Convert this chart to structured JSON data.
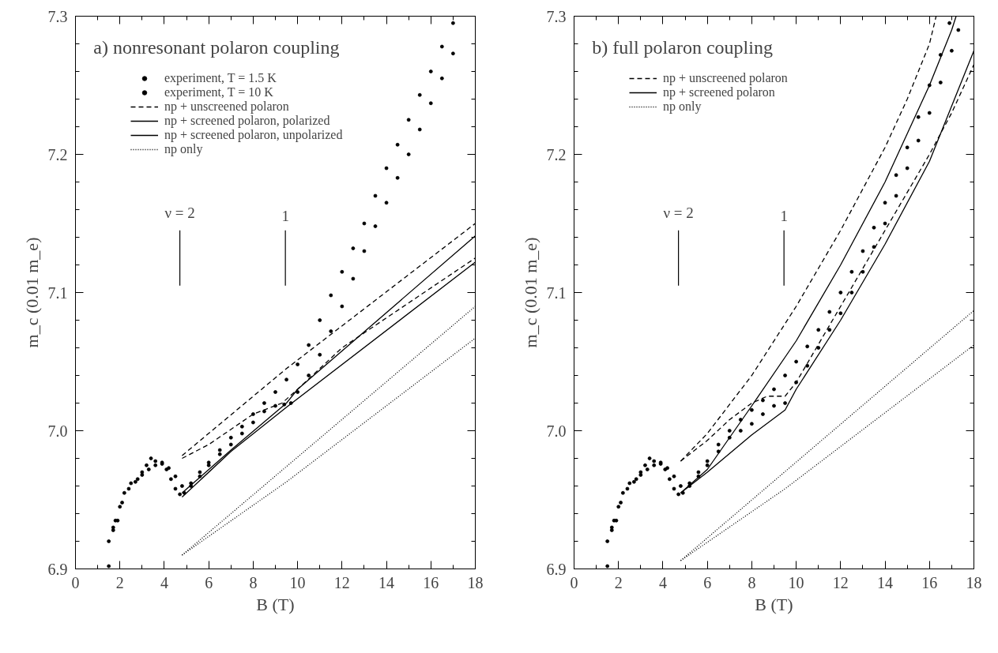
{
  "chart_data": [
    {
      "type": "line",
      "title": "a)  nonresonant polaron coupling",
      "xlabel": "B (T)",
      "ylabel": "m_c (0.01 m_e)",
      "xlim": [
        0,
        18
      ],
      "xticks": [
        0,
        2,
        4,
        6,
        8,
        10,
        12,
        14,
        16,
        18
      ],
      "ylim": [
        6.9,
        7.3
      ],
      "yticks": [
        {
          "value": 6.9,
          "label": "6.9"
        },
        {
          "value": 7.0,
          "label": "7.0"
        },
        {
          "value": 7.1,
          "label": "7.1"
        },
        {
          "value": 7.2,
          "label": "7.2"
        },
        {
          "value": 7.3,
          "label": "7.3"
        }
      ],
      "legend": "top left",
      "ref_lines": [
        {
          "axis": "x",
          "value": 4.7
        },
        {
          "axis": "x",
          "value": 9.45
        }
      ],
      "annotations": [
        "ν = 2",
        "1"
      ],
      "series": [
        {
          "name": "experiment, T = 1.5 K",
          "type": "scatter",
          "marker": "circle",
          "color": "#000000",
          "x": [
            1.5,
            1.7,
            1.8,
            2.0,
            2.2,
            2.5,
            2.8,
            3.0,
            3.2,
            3.4,
            3.6,
            3.9,
            4.1,
            4.3,
            4.5,
            4.7,
            4.9,
            5.2,
            5.6,
            6.0,
            6.5,
            7.0,
            7.5,
            8.0,
            8.5,
            9.0,
            9.4,
            9.7,
            10.0,
            10.5,
            11.0,
            11.5,
            12.0,
            12.5,
            13.0,
            13.5,
            14.0,
            14.5,
            15.0,
            15.5,
            16.0,
            16.5,
            17.0
          ],
          "values": [
            6.902,
            6.93,
            6.935,
            6.945,
            6.955,
            6.962,
            6.965,
            6.97,
            6.975,
            6.98,
            6.978,
            6.976,
            6.972,
            6.965,
            6.958,
            6.954,
            6.955,
            6.96,
            6.967,
            6.975,
            6.983,
            6.99,
            6.998,
            7.006,
            7.014,
            7.018,
            7.019,
            7.02,
            7.028,
            7.04,
            7.055,
            7.072,
            7.09,
            7.11,
            7.13,
            7.148,
            7.165,
            7.183,
            7.2,
            7.218,
            7.237,
            7.255,
            7.273
          ]
        },
        {
          "name": "experiment, T = 10 K",
          "type": "scatter",
          "marker": "circle",
          "color": "#000000",
          "x": [
            1.5,
            1.7,
            1.9,
            2.1,
            2.4,
            2.7,
            3.0,
            3.3,
            3.6,
            3.9,
            4.2,
            4.5,
            4.8,
            5.2,
            5.6,
            6.0,
            6.5,
            7.0,
            7.5,
            8.0,
            8.5,
            9.0,
            9.5,
            10.0,
            10.5,
            11.0,
            11.5,
            12.0,
            12.5,
            13.0,
            13.5,
            14.0,
            14.5,
            15.0,
            15.5,
            16.0,
            16.5,
            17.0
          ],
          "values": [
            6.92,
            6.928,
            6.935,
            6.948,
            6.958,
            6.963,
            6.968,
            6.972,
            6.975,
            6.977,
            6.973,
            6.967,
            6.96,
            6.962,
            6.97,
            6.977,
            6.986,
            6.995,
            7.003,
            7.012,
            7.02,
            7.028,
            7.037,
            7.048,
            7.062,
            7.08,
            7.098,
            7.115,
            7.132,
            7.15,
            7.17,
            7.19,
            7.207,
            7.225,
            7.243,
            7.26,
            7.278,
            7.295
          ]
        },
        {
          "name": "np + unscreened polaron",
          "line_style": "dashed",
          "color": "#000000",
          "x": [
            4.8,
            9.5,
            18
          ],
          "values": [
            6.982,
            7.045,
            7.15
          ]
        },
        {
          "line_style": "dashed",
          "color": "#000000",
          "x": [
            4.8,
            6,
            8,
            9.3,
            10,
            12,
            18
          ],
          "values": [
            6.98,
            6.99,
            7.012,
            7.02,
            7.03,
            7.06,
            7.125
          ]
        },
        {
          "name": "np + screened polaron, polarized",
          "line_style": "solid",
          "color": "#000000",
          "x": [
            4.8,
            7,
            9.5,
            18
          ],
          "values": [
            6.952,
            6.985,
            7.017,
            7.122
          ]
        },
        {
          "name": "np + screened polaron, unpolarized",
          "line_style": "solid",
          "color": "#000000",
          "x": [
            4.8,
            7,
            9.5,
            10,
            18
          ],
          "values": [
            6.955,
            6.986,
            7.02,
            7.03,
            7.141
          ]
        },
        {
          "name": "np only",
          "line_style": "dotted",
          "color": "#000000",
          "x": [
            4.8,
            18
          ],
          "values": [
            6.91,
            7.09
          ]
        },
        {
          "line_style": "dotted",
          "color": "#000000",
          "x": [
            4.8,
            9.5,
            18
          ],
          "values": [
            6.91,
            6.963,
            7.067
          ]
        }
      ]
    },
    {
      "type": "line",
      "title": "b) full polaron coupling",
      "xlabel": "B (T)",
      "ylabel": "m_c (0.01 m_e)",
      "xlim": [
        0,
        18
      ],
      "xticks": [
        0,
        2,
        4,
        6,
        8,
        10,
        12,
        14,
        16,
        18
      ],
      "ylim": [
        6.9,
        7.3
      ],
      "yticks": [
        {
          "value": 6.9,
          "label": "6.9"
        },
        {
          "value": 7.0,
          "label": "7.0"
        },
        {
          "value": 7.1,
          "label": "7.1"
        },
        {
          "value": 7.2,
          "label": "7.2"
        },
        {
          "value": 7.3,
          "label": "7.3"
        }
      ],
      "legend": "top left",
      "ref_lines": [
        {
          "axis": "x",
          "value": 4.7
        },
        {
          "axis": "x",
          "value": 9.45
        }
      ],
      "annotations": [
        "ν = 2",
        "1"
      ],
      "series": [
        {
          "name": "np + unscreened polaron",
          "line_style": "dashed",
          "color": "#000000",
          "x": [
            4.8,
            6,
            8,
            10,
            12,
            14,
            15,
            16,
            16.3
          ],
          "values": [
            6.978,
            6.998,
            7.04,
            7.09,
            7.145,
            7.205,
            7.24,
            7.28,
            7.3
          ]
        },
        {
          "line_style": "dashed",
          "color": "#000000",
          "x": [
            4.8,
            6,
            7,
            8,
            8.7,
            9.5,
            10,
            12,
            14,
            16,
            17,
            18
          ],
          "values": [
            6.978,
            6.993,
            7.008,
            7.02,
            7.025,
            7.025,
            7.035,
            7.09,
            7.145,
            7.2,
            7.23,
            7.265
          ]
        },
        {
          "name": "np + screened polaron",
          "line_style": "solid",
          "color": "#000000",
          "x": [
            4.8,
            6,
            8,
            10,
            12,
            14,
            16,
            17,
            17.2
          ],
          "values": [
            6.955,
            6.972,
            7.018,
            7.065,
            7.12,
            7.18,
            7.25,
            7.29,
            7.3
          ]
        },
        {
          "line_style": "solid",
          "color": "#000000",
          "x": [
            4.8,
            6,
            8,
            9.5,
            10,
            12,
            14,
            16,
            18
          ],
          "values": [
            6.955,
            6.97,
            6.997,
            7.015,
            7.03,
            7.08,
            7.135,
            7.195,
            7.275
          ]
        },
        {
          "name": "np only",
          "line_style": "dotted",
          "color": "#000000",
          "x": [
            4.8,
            18
          ],
          "values": [
            6.906,
            7.087
          ]
        },
        {
          "line_style": "dotted",
          "color": "#000000",
          "x": [
            4.8,
            9.5,
            18
          ],
          "values": [
            6.906,
            6.958,
            7.062
          ]
        },
        {
          "type": "scatter",
          "marker": "circle",
          "color": "#000000",
          "x": [
            1.5,
            1.7,
            1.8,
            2.0,
            2.2,
            2.5,
            2.8,
            3.0,
            3.2,
            3.4,
            3.6,
            3.9,
            4.1,
            4.3,
            4.5,
            4.7,
            4.9,
            5.2,
            5.6,
            6.0,
            6.5,
            7.0,
            7.5,
            8.0,
            8.5,
            9.0,
            9.5,
            10.0,
            10.5,
            11.0,
            11.5,
            12.0,
            12.5,
            13.0,
            13.5,
            14.0,
            14.5,
            15.0,
            15.5,
            16.0,
            16.5,
            17.0,
            17.3
          ],
          "values": [
            6.902,
            6.93,
            6.935,
            6.945,
            6.955,
            6.962,
            6.965,
            6.97,
            6.975,
            6.98,
            6.978,
            6.976,
            6.972,
            6.965,
            6.958,
            6.954,
            6.955,
            6.96,
            6.967,
            6.975,
            6.985,
            6.995,
            7.0,
            7.005,
            7.012,
            7.018,
            7.02,
            7.035,
            7.047,
            7.06,
            7.073,
            7.085,
            7.1,
            7.115,
            7.133,
            7.15,
            7.17,
            7.19,
            7.21,
            7.23,
            7.252,
            7.275,
            7.29
          ]
        },
        {
          "type": "scatter",
          "marker": "circle",
          "color": "#000000",
          "x": [
            1.5,
            1.7,
            1.9,
            2.1,
            2.4,
            2.7,
            3.0,
            3.3,
            3.6,
            3.9,
            4.2,
            4.5,
            4.8,
            5.2,
            5.6,
            6.0,
            6.5,
            7.0,
            7.5,
            8.0,
            8.5,
            9.0,
            9.5,
            10.0,
            10.5,
            11.0,
            11.5,
            12.0,
            12.5,
            13.0,
            13.5,
            14.0,
            14.5,
            15.0,
            15.5,
            16.0,
            16.5,
            16.9
          ],
          "values": [
            6.92,
            6.928,
            6.935,
            6.948,
            6.958,
            6.963,
            6.968,
            6.972,
            6.975,
            6.977,
            6.973,
            6.967,
            6.96,
            6.962,
            6.97,
            6.978,
            6.99,
            7.0,
            7.008,
            7.015,
            7.022,
            7.03,
            7.04,
            7.05,
            7.061,
            7.073,
            7.086,
            7.1,
            7.115,
            7.13,
            7.147,
            7.165,
            7.185,
            7.205,
            7.227,
            7.25,
            7.272,
            7.295
          ]
        }
      ]
    }
  ]
}
